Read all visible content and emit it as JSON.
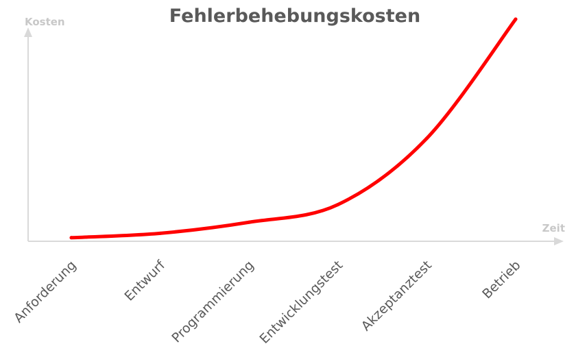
{
  "chart_data": {
    "type": "line",
    "title": "Fehlerbehebungskosten",
    "xlabel": "Zeit",
    "ylabel": "Kosten",
    "categories": [
      "Anforderung",
      "Entwurf",
      "Programmierung",
      "Entwicklungstest",
      "Akzeptanztest",
      "Betrieb"
    ],
    "series": [
      {
        "values": [
          1,
          3,
          8,
          16,
          46,
          100
        ]
      }
    ],
    "ylim": [
      0,
      100
    ],
    "y_ticks_shown": false,
    "grid": false,
    "legend": "none",
    "line_color": "#ff0000",
    "axis_color": "#d9d9d9",
    "title_color": "#595959",
    "axis_label_color": "#c8c8c8",
    "tick_label_color": "#595959"
  }
}
